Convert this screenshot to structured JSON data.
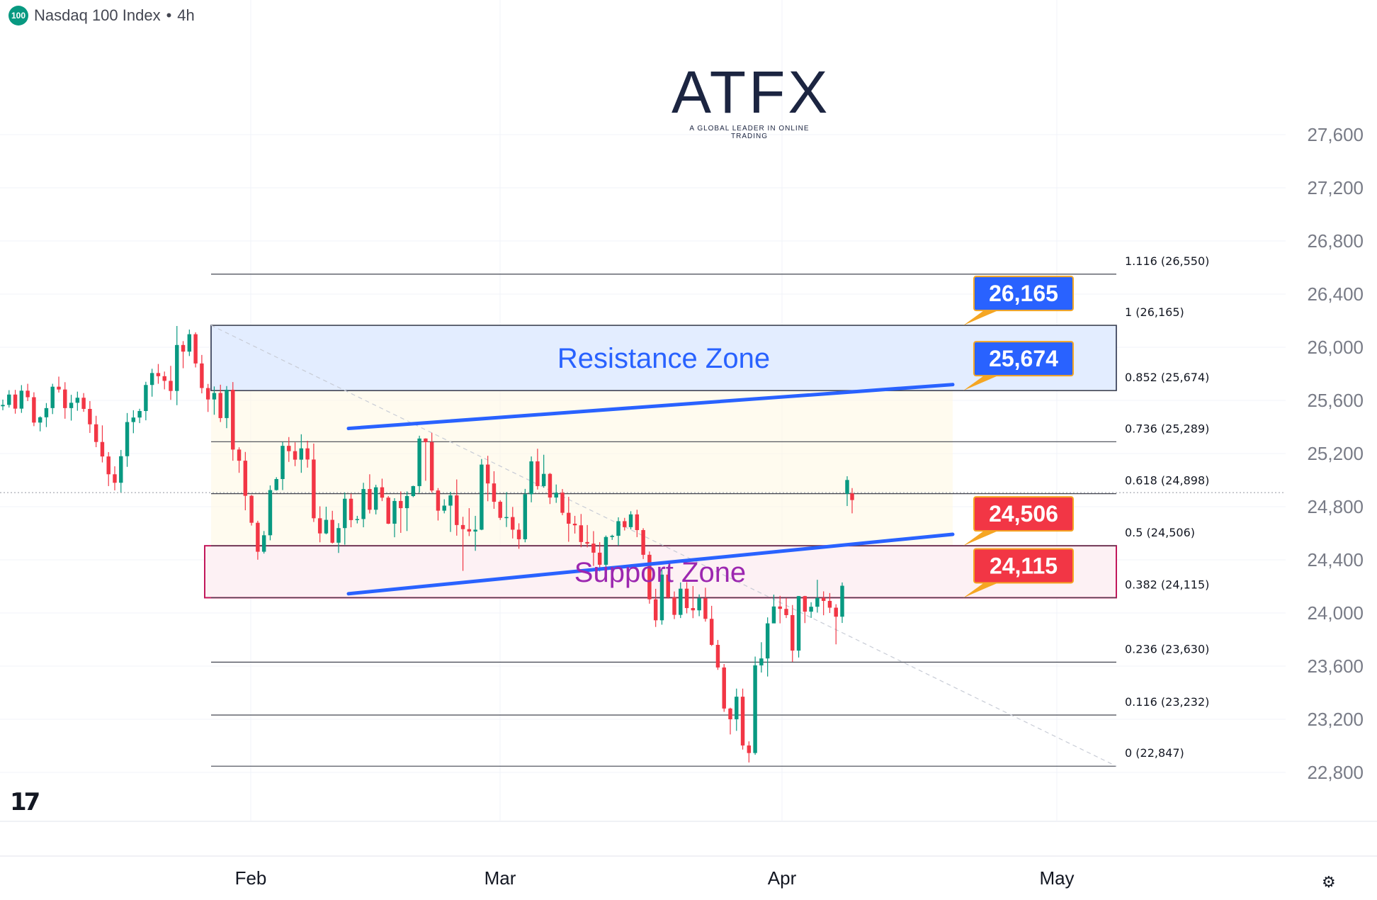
{
  "header": {
    "symbol_badge": "100",
    "title": "Nasdaq 100 Index",
    "separator": "•",
    "interval": "4h"
  },
  "logo": {
    "word": "ATFX",
    "tagline": "A GLOBAL LEADER IN ONLINE TRADING"
  },
  "colors": {
    "up": "#089981",
    "down": "#f23645",
    "blue_line": "#2962ff",
    "resistance": "#2962ff",
    "support": "#c2185b"
  },
  "chart_data": {
    "type": "candlestick",
    "y_axis": {
      "min": 22600,
      "max": 27600,
      "ticks": [
        "22,800",
        "23,200",
        "23,600",
        "24,000",
        "24,400",
        "24,800",
        "25,200",
        "25,600",
        "26,000",
        "26,400",
        "26,800",
        "27,200",
        "27,600"
      ]
    },
    "x_axis": {
      "labels": [
        "Feb",
        "Mar",
        "Apr",
        "May"
      ]
    },
    "fib_levels": [
      {
        "label": "1.116 (26,550)",
        "value": 26550
      },
      {
        "label": "1 (26,165)",
        "value": 26165
      },
      {
        "label": "0.852 (25,674)",
        "value": 25674
      },
      {
        "label": "0.736 (25,289)",
        "value": 25289
      },
      {
        "label": "0.618 (24,898)",
        "value": 24898
      },
      {
        "label": "0.5 (24,506)",
        "value": 24506
      },
      {
        "label": "0.382 (24,115)",
        "value": 24115
      },
      {
        "label": "0.236 (23,630)",
        "value": 23630
      },
      {
        "label": "0.116 (23,232)",
        "value": 23232
      },
      {
        "label": "0 (22,847)",
        "value": 22847
      }
    ],
    "zones": [
      {
        "label": "Resistance Zone",
        "top": 26165,
        "bottom": 25674,
        "color": "#2962ff"
      },
      {
        "label": "Support Zone",
        "top": 24506,
        "bottom": 24115,
        "color": "#c2185b"
      }
    ],
    "price_tags": [
      {
        "label": "26,165",
        "value": 26165,
        "color": "#2962ff"
      },
      {
        "label": "25,674",
        "value": 25674,
        "color": "#2962ff"
      },
      {
        "label": "24,506",
        "value": 24506,
        "color": "#f23645"
      },
      {
        "label": "24,115",
        "value": 24115,
        "color": "#f23645"
      }
    ],
    "trendlines": [
      {
        "from": [
          0.43,
          25389
        ],
        "to": [
          0.7,
          25719
        ]
      },
      {
        "from": [
          0.43,
          24145
        ],
        "to": [
          0.7,
          24592
        ]
      }
    ],
    "candles_ohlc": [
      [
        25556,
        25606,
        25526,
        25566
      ],
      [
        25566,
        25677,
        25546,
        25644
      ],
      [
        25644,
        25679,
        25500,
        25538
      ],
      [
        25538,
        25715,
        25506,
        25673
      ],
      [
        25673,
        25725,
        25595,
        25624
      ],
      [
        25624,
        25661,
        25406,
        25433
      ],
      [
        25433,
        25480,
        25367,
        25473
      ],
      [
        25473,
        25580,
        25399,
        25542
      ],
      [
        25542,
        25725,
        25497,
        25703
      ],
      [
        25703,
        25779,
        25659,
        25682
      ],
      [
        25682,
        25737,
        25462,
        25542
      ],
      [
        25542,
        25642,
        25448,
        25582
      ],
      [
        25582,
        25666,
        25522,
        25620
      ],
      [
        25620,
        25655,
        25514,
        25536
      ],
      [
        25536,
        25595,
        25355,
        25420
      ],
      [
        25420,
        25484,
        25248,
        25287
      ],
      [
        25287,
        25412,
        25133,
        25178
      ],
      [
        25178,
        25211,
        24955,
        25044
      ],
      [
        25044,
        25104,
        24923,
        24980
      ],
      [
        24980,
        25227,
        24908,
        25180
      ],
      [
        25180,
        25505,
        25100,
        25437
      ],
      [
        25437,
        25526,
        25353,
        25471
      ],
      [
        25471,
        25537,
        25429,
        25520
      ],
      [
        25520,
        25740,
        25450,
        25716
      ],
      [
        25716,
        25838,
        25628,
        25806
      ],
      [
        25806,
        25874,
        25725,
        25782
      ],
      [
        25782,
        25817,
        25683,
        25747
      ],
      [
        25747,
        25860,
        25604,
        25671
      ],
      [
        25671,
        26160,
        25564,
        26017
      ],
      [
        26017,
        26046,
        25842,
        25967
      ],
      [
        25967,
        26133,
        25934,
        26098
      ],
      [
        26098,
        26112,
        25848,
        25878
      ],
      [
        25878,
        25942,
        25653,
        25693
      ],
      [
        25693,
        25724,
        25513,
        25607
      ],
      [
        25607,
        25705,
        25492,
        25656
      ],
      [
        25656,
        25718,
        25437,
        25467
      ],
      [
        25467,
        25708,
        25391,
        25680
      ],
      [
        25680,
        25738,
        25146,
        25230
      ],
      [
        25230,
        25247,
        25055,
        25146
      ],
      [
        25146,
        25212,
        24773,
        24882
      ],
      [
        24882,
        24889,
        24658,
        24679
      ],
      [
        24679,
        24694,
        24401,
        24461
      ],
      [
        24461,
        24617,
        24447,
        24585
      ],
      [
        24585,
        24960,
        24547,
        24925
      ],
      [
        24925,
        25022,
        24921,
        25008
      ],
      [
        25008,
        25287,
        24925,
        25258
      ],
      [
        25258,
        25324,
        25137,
        25218
      ],
      [
        25218,
        25284,
        25105,
        25154
      ],
      [
        25154,
        25345,
        25055,
        25239
      ],
      [
        25239,
        25296,
        25094,
        25155
      ],
      [
        25155,
        25275,
        24685,
        24713
      ],
      [
        24713,
        24803,
        24532,
        24599
      ],
      [
        24599,
        24800,
        24592,
        24701
      ],
      [
        24701,
        24769,
        24523,
        24529
      ],
      [
        24529,
        24676,
        24452,
        24639
      ],
      [
        24639,
        24906,
        24514,
        24860
      ],
      [
        24860,
        24898,
        24645,
        24699
      ],
      [
        24699,
        24731,
        24674,
        24707
      ],
      [
        24707,
        24980,
        24645,
        24933
      ],
      [
        24933,
        25044,
        24749,
        24777
      ],
      [
        24777,
        24965,
        24742,
        24946
      ],
      [
        24946,
        25011,
        24842,
        24868
      ],
      [
        24868,
        24880,
        24669,
        24672
      ],
      [
        24672,
        24864,
        24570,
        24843
      ],
      [
        24843,
        24915,
        24603,
        24789
      ],
      [
        24789,
        24915,
        24617,
        24880
      ],
      [
        24880,
        24958,
        24872,
        24955
      ],
      [
        24955,
        25334,
        24904,
        25313
      ],
      [
        25313,
        25315,
        24995,
        25286
      ],
      [
        25286,
        25356,
        24906,
        24922
      ],
      [
        24922,
        24940,
        24696,
        24770
      ],
      [
        24770,
        24856,
        24750,
        24808
      ],
      [
        24808,
        24912,
        24610,
        24885
      ],
      [
        24885,
        25005,
        24582,
        24662
      ],
      [
        24662,
        24724,
        24317,
        24631
      ],
      [
        24631,
        24789,
        24579,
        24613
      ],
      [
        24613,
        24731,
        24468,
        24627
      ],
      [
        24627,
        25159,
        24623,
        25117
      ],
      [
        25117,
        25183,
        24841,
        24975
      ],
      [
        24975,
        25067,
        24784,
        24837
      ],
      [
        24837,
        24849,
        24700,
        24716
      ],
      [
        24716,
        24910,
        24647,
        24722
      ],
      [
        24722,
        24798,
        24561,
        24627
      ],
      [
        24627,
        24675,
        24483,
        24555
      ],
      [
        24555,
        24934,
        24532,
        24894
      ],
      [
        24894,
        25178,
        24833,
        25141
      ],
      [
        25141,
        25236,
        24929,
        24955
      ],
      [
        24955,
        25191,
        24943,
        25047
      ],
      [
        25047,
        25054,
        24820,
        24869
      ],
      [
        24869,
        24967,
        24829,
        24905
      ],
      [
        24905,
        24933,
        24736,
        24754
      ],
      [
        24754,
        24874,
        24536,
        24672
      ],
      [
        24672,
        24731,
        24598,
        24660
      ],
      [
        24660,
        24745,
        24495,
        24534
      ],
      [
        24534,
        24662,
        24494,
        24522
      ],
      [
        24522,
        24616,
        24354,
        24454
      ],
      [
        24454,
        24533,
        24312,
        24363
      ],
      [
        24363,
        24583,
        24288,
        24572
      ],
      [
        24572,
        24589,
        24550,
        24581
      ],
      [
        24581,
        24720,
        24507,
        24691
      ],
      [
        24691,
        24716,
        24621,
        24646
      ],
      [
        24646,
        24766,
        24629,
        24742
      ],
      [
        24742,
        24777,
        24571,
        24624
      ],
      [
        24624,
        24638,
        24406,
        24438
      ],
      [
        24438,
        24463,
        24070,
        24103
      ],
      [
        24103,
        24182,
        23895,
        23945
      ],
      [
        23945,
        24325,
        23912,
        24289
      ],
      [
        24289,
        24313,
        24108,
        24117
      ],
      [
        24117,
        24162,
        23954,
        23986
      ],
      [
        23986,
        24230,
        23962,
        24183
      ],
      [
        24183,
        24232,
        23997,
        24037
      ],
      [
        24037,
        24203,
        23961,
        24020
      ],
      [
        24020,
        24140,
        23976,
        24111
      ],
      [
        24111,
        24190,
        23935,
        23956
      ],
      [
        23956,
        24054,
        23752,
        23760
      ],
      [
        23760,
        23797,
        23572,
        23590
      ],
      [
        23590,
        23616,
        23256,
        23281
      ],
      [
        23281,
        23287,
        23086,
        23200
      ],
      [
        23200,
        23431,
        23113,
        23370
      ],
      [
        23370,
        23431,
        22972,
        23003
      ],
      [
        23003,
        23034,
        22875,
        22946
      ],
      [
        22946,
        23672,
        22933,
        23606
      ],
      [
        23606,
        23780,
        23552,
        23658
      ],
      [
        23658,
        23967,
        23522,
        23922
      ],
      [
        23922,
        24138,
        23926,
        24049
      ],
      [
        24049,
        24129,
        23922,
        24031
      ],
      [
        24031,
        24113,
        23962,
        23984
      ],
      [
        23984,
        24060,
        23632,
        23717
      ],
      [
        23717,
        24128,
        23665,
        24127
      ],
      [
        24127,
        24129,
        23924,
        24010
      ],
      [
        24010,
        24081,
        23963,
        24047
      ],
      [
        24047,
        24250,
        24003,
        24114
      ],
      [
        24114,
        24163,
        23983,
        24091
      ],
      [
        24091,
        24150,
        24000,
        24040
      ],
      [
        24040,
        24066,
        23764,
        23972
      ],
      [
        23972,
        24230,
        23925,
        24205
      ],
      [
        24897,
        25029,
        24805,
        25001
      ],
      [
        24900,
        24940,
        24750,
        24850
      ]
    ]
  }
}
